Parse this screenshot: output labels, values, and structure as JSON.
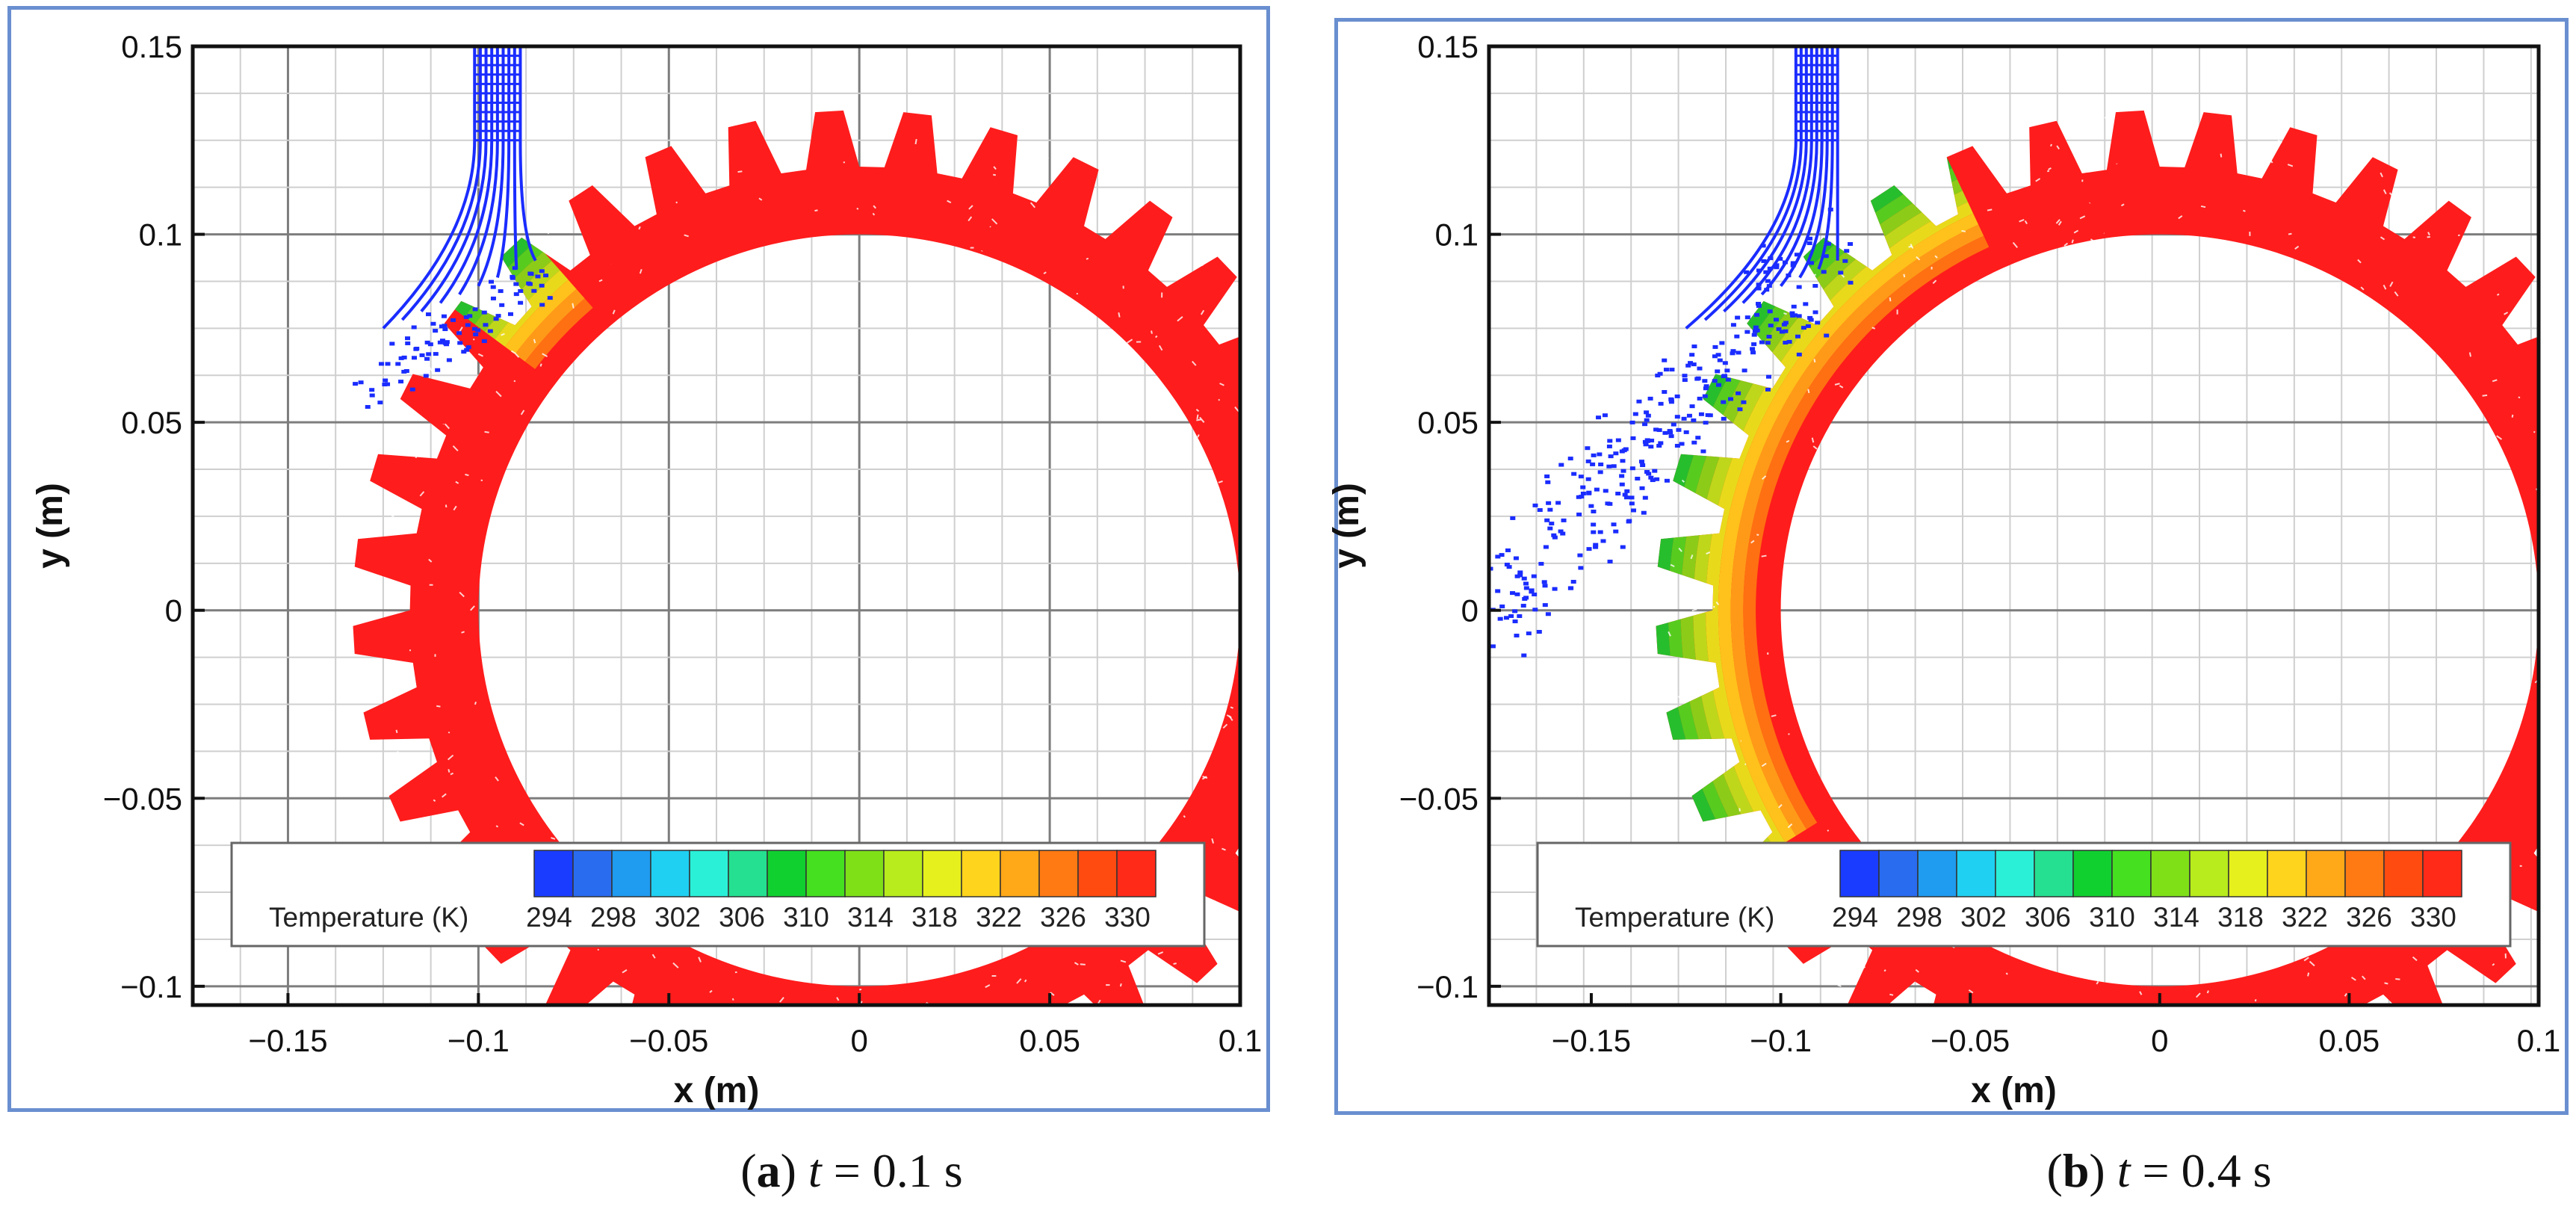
{
  "figure": {
    "panels": [
      {
        "caption_letter": "a",
        "caption_var": "t",
        "caption_eq": "= 0.1 s"
      },
      {
        "caption_letter": "b",
        "caption_var": "t",
        "caption_eq": "= 0.4 s"
      }
    ]
  },
  "chart_data": [
    {
      "type": "contour",
      "panel": "a",
      "xlabel": "x (m)",
      "ylabel": "y (m)",
      "xlim": [
        -0.175,
        0.1
      ],
      "ylim": [
        -0.105,
        0.15
      ],
      "x_ticks": [
        -0.15,
        -0.1,
        -0.05,
        0,
        0.05,
        0.1
      ],
      "x_tick_labels": [
        "−0.15",
        "−0.1",
        "−0.05",
        "0",
        "0.05",
        "0.1"
      ],
      "y_ticks": [
        -0.1,
        -0.05,
        0,
        0.05,
        0.1,
        0.15
      ],
      "y_tick_labels": [
        "−0.1",
        "−0.05",
        "0",
        "0.05",
        "0.1",
        "0.15"
      ],
      "gear": {
        "center": [
          0,
          0
        ],
        "inner_radius": 0.1,
        "root_radius": 0.118,
        "tip_radius": 0.133,
        "teeth": 36
      },
      "legend": {
        "title": "Temperature (K)",
        "levels": [
          "294",
          "298",
          "302",
          "306",
          "310",
          "314",
          "318",
          "322",
          "326",
          "330"
        ]
      },
      "colormap": [
        "#1a3cff",
        "#2a6cf0",
        "#1f9bf0",
        "#1fd0f2",
        "#2af0d8",
        "#25e090",
        "#10d030",
        "#45e020",
        "#7fe018",
        "#b8ec1c",
        "#e6f01c",
        "#ffd41c",
        "#ffa818",
        "#ff7a12",
        "#ff4a10",
        "#ff2a18"
      ],
      "cold_color": "#1a2cff",
      "hot_color": "#ff1c1c",
      "time_s": 0.1,
      "jet": {
        "x_left": -0.101,
        "x_right": -0.089,
        "y_top": 0.152,
        "y_bend": 0.125
      },
      "cooled_angles_deg": [
        131,
        143
      ]
    },
    {
      "type": "contour",
      "panel": "b",
      "xlabel": "x (m)",
      "ylabel": "y (m)",
      "xlim": [
        -0.177,
        0.1
      ],
      "ylim": [
        -0.105,
        0.15
      ],
      "x_ticks": [
        -0.15,
        -0.1,
        -0.05,
        0,
        0.05,
        0.1
      ],
      "x_tick_labels": [
        "−0.15",
        "−0.1",
        "−0.05",
        "0",
        "0.05",
        "0.1"
      ],
      "y_ticks": [
        -0.1,
        -0.05,
        0,
        0.05,
        0.1,
        0.15
      ],
      "y_tick_labels": [
        "−0.1",
        "−0.05",
        "0",
        "0.05",
        "0.1",
        "0.15"
      ],
      "gear": {
        "center": [
          0,
          0
        ],
        "inner_radius": 0.1,
        "root_radius": 0.118,
        "tip_radius": 0.133,
        "teeth": 36
      },
      "legend": {
        "title": "Temperature (K)",
        "levels": [
          "294",
          "298",
          "302",
          "306",
          "310",
          "314",
          "318",
          "322",
          "326",
          "330"
        ]
      },
      "colormap": [
        "#1a3cff",
        "#2a6cf0",
        "#1f9bf0",
        "#1fd0f2",
        "#2af0d8",
        "#25e090",
        "#10d030",
        "#45e020",
        "#7fe018",
        "#b8ec1c",
        "#e6f01c",
        "#ffd41c",
        "#ffa818",
        "#ff7a12",
        "#ff4a10",
        "#ff2a18"
      ],
      "cold_color": "#1a2cff",
      "hot_color": "#ff1c1c",
      "time_s": 0.4,
      "jet": {
        "x_left": -0.096,
        "x_right": -0.085,
        "y_top": 0.152,
        "y_bend": 0.125
      },
      "cooled_angles_deg": [
        115,
        212
      ]
    }
  ]
}
